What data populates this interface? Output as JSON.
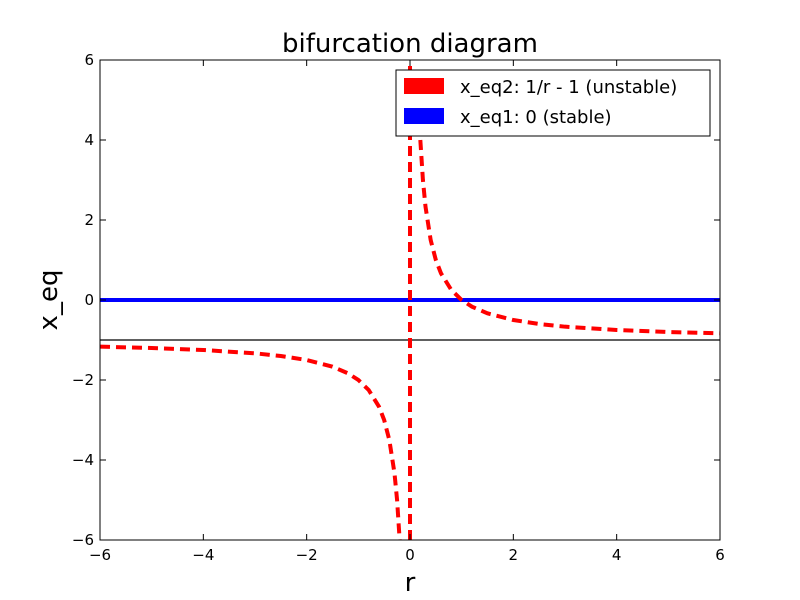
{
  "chart_data": {
    "type": "line",
    "title": "bifurcation diagram",
    "xlabel": "r",
    "ylabel": "x_eq",
    "xlim": [
      -6,
      6
    ],
    "ylim": [
      -6,
      6
    ],
    "xticks": [
      -6,
      -4,
      -2,
      0,
      2,
      4,
      6
    ],
    "yticks": [
      -6,
      -4,
      -2,
      0,
      2,
      4,
      6
    ],
    "grid": false,
    "legend_position": "upper-right",
    "series": [
      {
        "name": "x_eq2: 1/r - 1 (unstable)",
        "color": "#ff0000",
        "style": "dashed",
        "function": "1/r - 1",
        "x": [
          -6,
          -5,
          -4,
          -3,
          -2.5,
          -2,
          -1.5,
          -1.2,
          -1,
          -0.8,
          -0.6,
          -0.5,
          -0.4,
          -0.3,
          -0.25,
          -0.2,
          0.2,
          0.25,
          0.3,
          0.4,
          0.5,
          0.6,
          0.8,
          1,
          1.2,
          1.5,
          2,
          2.5,
          3,
          4,
          5,
          6
        ],
        "values": [
          -1.167,
          -1.2,
          -1.25,
          -1.333,
          -1.4,
          -1.5,
          -1.667,
          -1.833,
          -2,
          -2.25,
          -2.667,
          -3,
          -3.5,
          -4.333,
          -5,
          -6,
          4,
          3,
          2.333,
          1.5,
          1,
          0.667,
          0.25,
          0,
          -0.167,
          -0.333,
          -0.5,
          -0.6,
          -0.667,
          -0.75,
          -0.8,
          -0.833
        ]
      },
      {
        "name": "x_eq1: 0 (stable)",
        "color": "#0000ff",
        "style": "solid",
        "function": "0",
        "x": [
          -6,
          6
        ],
        "values": [
          0,
          0
        ]
      }
    ],
    "reference_lines": [
      {
        "axis": "y",
        "value": -1,
        "color": "#000000"
      },
      {
        "axis": "x",
        "value": 0,
        "color": "#ff0000",
        "style": "dashed"
      }
    ]
  }
}
